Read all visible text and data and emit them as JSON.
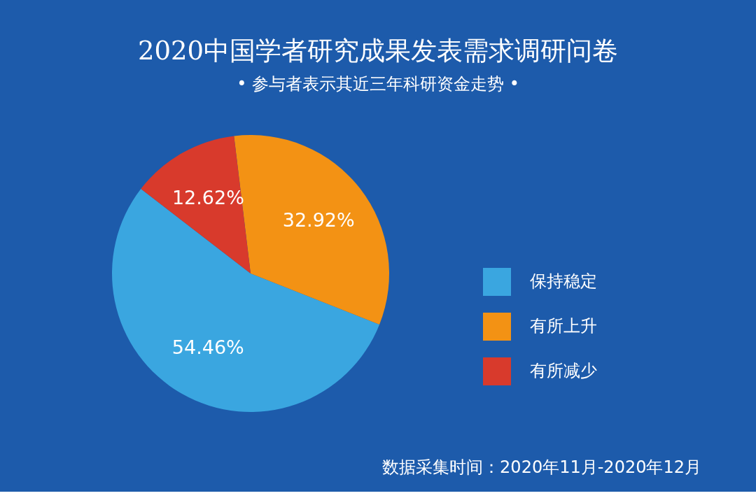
{
  "chart_data": {
    "type": "pie",
    "title": "2020中国学者研究成果发表需求调研问卷",
    "subtitle": "• 参与者表示其近三年科研资金走势 •",
    "categories": [
      "保持稳定",
      "有所上升",
      "有所减少"
    ],
    "values": [
      54.46,
      32.92,
      12.62
    ],
    "colors": [
      "#3aa6e0",
      "#f39214",
      "#d83a2c"
    ],
    "value_labels": [
      "54.46%",
      "32.92%",
      "12.62%"
    ],
    "legend": "right",
    "annotations": [
      "数据采集时间：2020年11月-2020年12月"
    ]
  }
}
